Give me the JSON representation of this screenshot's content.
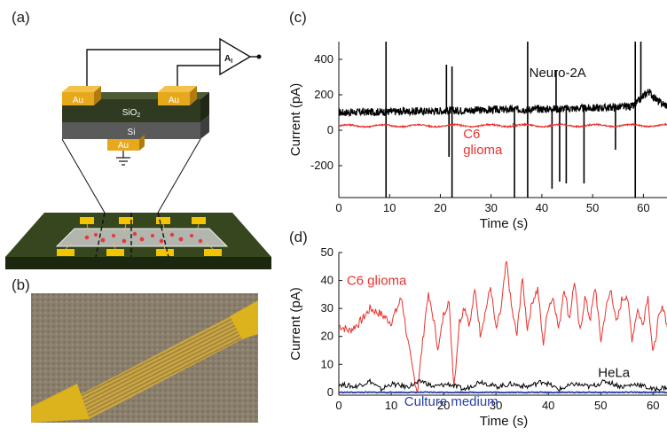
{
  "panels": {
    "a": "(a)",
    "b": "(b)",
    "c": "(c)",
    "d": "(d)"
  },
  "schematic": {
    "amplifier_label": "A",
    "amplifier_subscript": "I",
    "electrode_label": "Au",
    "oxide_label": "SiO",
    "oxide_subscript": "2",
    "substrate_label": "Si",
    "colors": {
      "gold": "#e8a81c",
      "oxide": "#2f3a20",
      "silicon": "#5a5a5a",
      "board": "#36461f",
      "pad": "#f2c500"
    }
  },
  "chart_data": [
    {
      "type": "line",
      "panel": "c",
      "xlabel": "Time (s)",
      "ylabel": "Current (pA)",
      "xlim": [
        0,
        65
      ],
      "ylim": [
        -380,
        500
      ],
      "xticks": [
        0,
        10,
        20,
        30,
        40,
        50,
        60
      ],
      "yticks": [
        -200,
        0,
        200,
        400
      ],
      "series": [
        {
          "name": "Neuro-2A",
          "color": "#000000",
          "baseline": [
            [
              0,
              100
            ],
            [
              10,
              105
            ],
            [
              20,
              110
            ],
            [
              30,
              115
            ],
            [
              40,
              120
            ],
            [
              50,
              125
            ],
            [
              58,
              135
            ],
            [
              61,
              220
            ],
            [
              63,
              160
            ],
            [
              65,
              135
            ]
          ],
          "spikes": [
            [
              9.3,
              500
            ],
            [
              9.3,
              -380
            ],
            [
              21.2,
              370
            ],
            [
              21.7,
              -150
            ],
            [
              22.3,
              -380
            ],
            [
              22.3,
              360
            ],
            [
              34.6,
              -380
            ],
            [
              37.2,
              500
            ],
            [
              37.2,
              -380
            ],
            [
              42.0,
              -330
            ],
            [
              42.8,
              340
            ],
            [
              43.5,
              -290
            ],
            [
              44.8,
              -300
            ],
            [
              48.3,
              -300
            ],
            [
              54.5,
              -110
            ],
            [
              58.4,
              500
            ],
            [
              58.4,
              -380
            ],
            [
              59.5,
              500
            ]
          ]
        },
        {
          "name": "C6\nglioma",
          "color": "#e8322e",
          "baseline": [
            [
              0,
              25
            ],
            [
              65,
              27
            ]
          ],
          "spikes": [
            [
              34.3,
              40
            ],
            [
              22.0,
              35
            ]
          ]
        }
      ]
    },
    {
      "type": "line",
      "panel": "d",
      "xlabel": "Time (s)",
      "ylabel": "Current (pA)",
      "xlim": [
        0,
        63
      ],
      "ylim": [
        -1,
        50
      ],
      "xticks": [
        0,
        10,
        20,
        30,
        40,
        50,
        60
      ],
      "yticks": [
        0,
        10,
        20,
        30,
        40,
        50
      ],
      "series": [
        {
          "name": "C6 glioma",
          "color": "#e8322e",
          "points": [
            [
              0,
              24
            ],
            [
              2,
              22
            ],
            [
              4,
              25
            ],
            [
              6,
              30
            ],
            [
              8,
              28
            ],
            [
              10,
              25
            ],
            [
              12,
              34
            ],
            [
              13,
              20
            ],
            [
              14,
              9
            ],
            [
              15,
              0
            ],
            [
              16,
              18
            ],
            [
              17,
              35
            ],
            [
              18,
              27
            ],
            [
              19,
              15
            ],
            [
              20,
              28
            ],
            [
              21,
              33
            ],
            [
              22,
              2
            ],
            [
              23,
              25
            ],
            [
              24,
              31
            ],
            [
              25,
              24
            ],
            [
              26,
              37
            ],
            [
              27,
              21
            ],
            [
              28,
              29
            ],
            [
              29,
              38
            ],
            [
              30,
              22
            ],
            [
              31,
              30
            ],
            [
              32,
              47
            ],
            [
              33,
              30
            ],
            [
              34,
              20
            ],
            [
              35,
              41
            ],
            [
              36,
              23
            ],
            [
              37,
              33
            ],
            [
              38,
              37
            ],
            [
              39,
              17
            ],
            [
              40,
              31
            ],
            [
              41,
              34
            ],
            [
              42,
              22
            ],
            [
              43,
              38
            ],
            [
              44,
              26
            ],
            [
              45,
              40
            ],
            [
              46,
              21
            ],
            [
              47,
              34
            ],
            [
              48,
              26
            ],
            [
              49,
              38
            ],
            [
              50,
              18
            ],
            [
              51,
              30
            ],
            [
              52,
              37
            ],
            [
              53,
              24
            ],
            [
              54,
              33
            ],
            [
              55,
              35
            ],
            [
              56,
              19
            ],
            [
              57,
              30
            ],
            [
              58,
              24
            ],
            [
              59,
              35
            ],
            [
              60,
              13
            ],
            [
              61,
              26
            ],
            [
              62,
              31
            ],
            [
              63,
              20
            ]
          ]
        },
        {
          "name": "HeLa",
          "color": "#000000",
          "points": [
            [
              0,
              3
            ],
            [
              3,
              2
            ],
            [
              6,
              4
            ],
            [
              8,
              1
            ],
            [
              10,
              3
            ],
            [
              13,
              2
            ],
            [
              16,
              4
            ],
            [
              18,
              2
            ],
            [
              21,
              3
            ],
            [
              24,
              1
            ],
            [
              27,
              4
            ],
            [
              30,
              2
            ],
            [
              33,
              3
            ],
            [
              36,
              2
            ],
            [
              39,
              4
            ],
            [
              42,
              1
            ],
            [
              45,
              3
            ],
            [
              48,
              2
            ],
            [
              51,
              4
            ],
            [
              54,
              2
            ],
            [
              57,
              3
            ],
            [
              60,
              1
            ],
            [
              63,
              2
            ]
          ]
        },
        {
          "name": "Culture medium",
          "color": "#2a3ea6",
          "points": [
            [
              0,
              0
            ],
            [
              63,
              0
            ]
          ]
        }
      ]
    }
  ]
}
